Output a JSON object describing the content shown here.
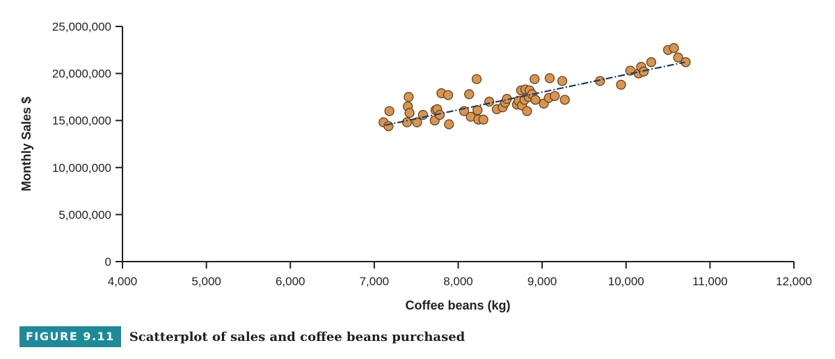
{
  "chart_data": {
    "type": "scatter",
    "title": "",
    "xlabel": "Coffee beans (kg)",
    "ylabel": "Monthly Sales $",
    "xlim": [
      4000,
      12000
    ],
    "ylim": [
      0,
      25000000
    ],
    "x_ticks": [
      4000,
      5000,
      6000,
      7000,
      8000,
      9000,
      10000,
      11000,
      12000
    ],
    "x_tick_labels": [
      "4,000",
      "5,000",
      "6,000",
      "7,000",
      "8,000",
      "9,000",
      "10,000",
      "11,000",
      "12,000"
    ],
    "y_ticks": [
      0,
      5000000,
      10000000,
      15000000,
      20000000,
      25000000
    ],
    "y_tick_labels": [
      "0",
      "5,000,000",
      "10,000,000",
      "15,000,000",
      "20,000,000",
      "25,000,000"
    ],
    "grid": false,
    "point_color": "#d9944e",
    "point_edge_color": "#5a3a18",
    "trend_color": "#1f3a6b",
    "trendline": {
      "x": [
        7130,
        10700
      ],
      "y": [
        14500000,
        21200000
      ]
    },
    "points": [
      {
        "x": 7110,
        "y": 14800000
      },
      {
        "x": 7170,
        "y": 14400000
      },
      {
        "x": 7180,
        "y": 16000000
      },
      {
        "x": 7390,
        "y": 14800000
      },
      {
        "x": 7400,
        "y": 16500000
      },
      {
        "x": 7410,
        "y": 17500000
      },
      {
        "x": 7420,
        "y": 15800000
      },
      {
        "x": 7510,
        "y": 14800000
      },
      {
        "x": 7580,
        "y": 15600000
      },
      {
        "x": 7720,
        "y": 15000000
      },
      {
        "x": 7730,
        "y": 16100000
      },
      {
        "x": 7750,
        "y": 16200000
      },
      {
        "x": 7780,
        "y": 15600000
      },
      {
        "x": 7800,
        "y": 17900000
      },
      {
        "x": 7880,
        "y": 17700000
      },
      {
        "x": 7890,
        "y": 14600000
      },
      {
        "x": 8070,
        "y": 16000000
      },
      {
        "x": 8130,
        "y": 17800000
      },
      {
        "x": 8150,
        "y": 15400000
      },
      {
        "x": 8220,
        "y": 19400000
      },
      {
        "x": 8230,
        "y": 16100000
      },
      {
        "x": 8240,
        "y": 15100000
      },
      {
        "x": 8300,
        "y": 15100000
      },
      {
        "x": 8370,
        "y": 17000000
      },
      {
        "x": 8460,
        "y": 16200000
      },
      {
        "x": 8530,
        "y": 16400000
      },
      {
        "x": 8560,
        "y": 16900000
      },
      {
        "x": 8580,
        "y": 17300000
      },
      {
        "x": 8700,
        "y": 16700000
      },
      {
        "x": 8720,
        "y": 17100000
      },
      {
        "x": 8750,
        "y": 18200000
      },
      {
        "x": 8760,
        "y": 16600000
      },
      {
        "x": 8790,
        "y": 17200000
      },
      {
        "x": 8800,
        "y": 18300000
      },
      {
        "x": 8820,
        "y": 16000000
      },
      {
        "x": 8840,
        "y": 17500000
      },
      {
        "x": 8850,
        "y": 18200000
      },
      {
        "x": 8880,
        "y": 17800000
      },
      {
        "x": 8910,
        "y": 19400000
      },
      {
        "x": 8920,
        "y": 17200000
      },
      {
        "x": 9020,
        "y": 16800000
      },
      {
        "x": 9080,
        "y": 17400000
      },
      {
        "x": 9090,
        "y": 19500000
      },
      {
        "x": 9150,
        "y": 17600000
      },
      {
        "x": 9240,
        "y": 19200000
      },
      {
        "x": 9270,
        "y": 17200000
      },
      {
        "x": 9690,
        "y": 19200000
      },
      {
        "x": 9940,
        "y": 18800000
      },
      {
        "x": 10050,
        "y": 20300000
      },
      {
        "x": 10150,
        "y": 20000000
      },
      {
        "x": 10180,
        "y": 20700000
      },
      {
        "x": 10210,
        "y": 20200000
      },
      {
        "x": 10300,
        "y": 21200000
      },
      {
        "x": 10500,
        "y": 22500000
      },
      {
        "x": 10570,
        "y": 22700000
      },
      {
        "x": 10620,
        "y": 21700000
      },
      {
        "x": 10710,
        "y": 21200000
      }
    ]
  },
  "caption": {
    "figure_label": "FIGURE 9.11",
    "text": "Scatterplot of sales and coffee beans purchased",
    "badge_color": "#1d8a99"
  }
}
